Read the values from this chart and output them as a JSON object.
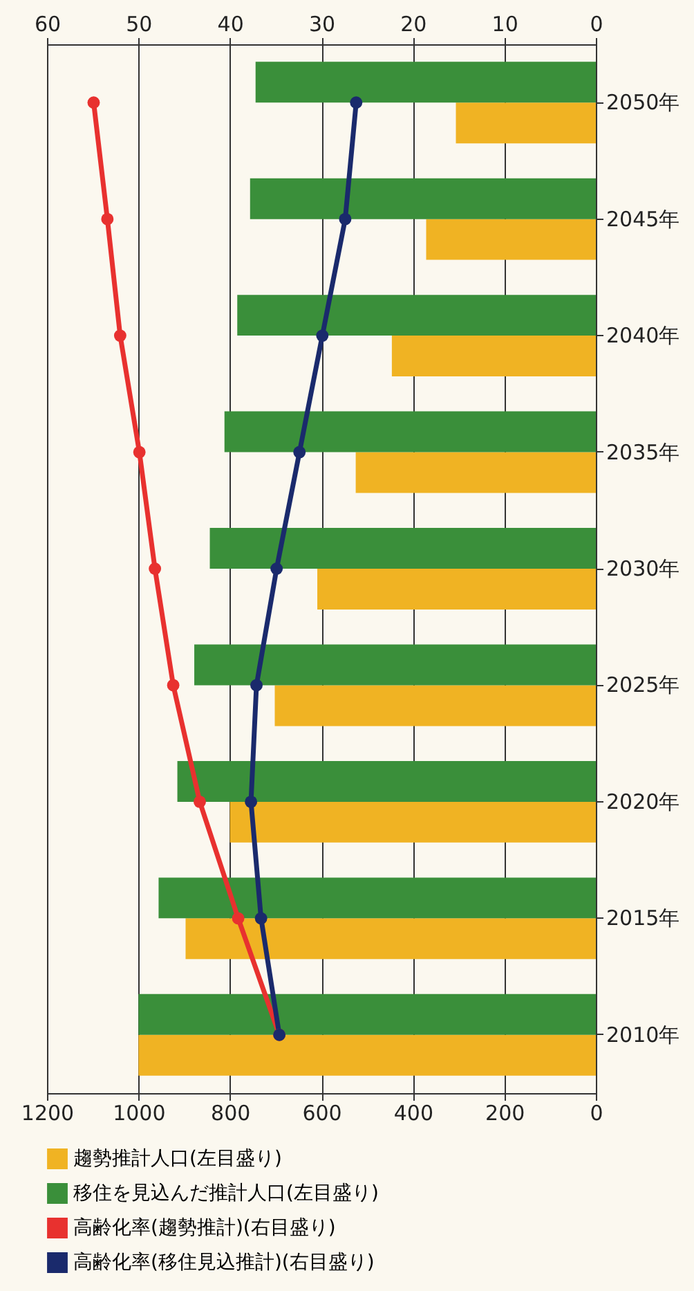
{
  "chart_data": {
    "type": "bar",
    "orientation": "horizontal",
    "categories": [
      "2050年",
      "2045年",
      "2040年",
      "2035年",
      "2030年",
      "2025年",
      "2020年",
      "2015年",
      "2010年"
    ],
    "series": [
      {
        "name": "趨勢推計人口(左目盛り)",
        "color": "#f0b323",
        "values": [
          306,
          371,
          446,
          525,
          609,
          702,
          800,
          897,
          1000
        ]
      },
      {
        "name": "移住を見込んだ推計人口(左目盛り)",
        "color": "#3a8f3a",
        "values": [
          744,
          756,
          784,
          812,
          844,
          878,
          915,
          956,
          1000
        ]
      },
      {
        "name": "高齢化率(趨勢推計)(右目盛り)",
        "color": "#e8312f",
        "type": "line",
        "axis": "x2",
        "values": [
          54.9,
          53.4,
          52.0,
          49.9,
          48.2,
          46.2,
          43.3,
          39.1,
          34.6
        ]
      },
      {
        "name": "高齢化率(移住見込推計)(右目盛り)",
        "color": "#1a2a6c",
        "type": "line",
        "axis": "x2",
        "values": [
          26.2,
          27.4,
          29.9,
          32.4,
          34.9,
          37.1,
          37.7,
          36.6,
          34.6
        ]
      }
    ],
    "xlim": [
      1200,
      0
    ],
    "xticks": [
      1200,
      1000,
      800,
      600,
      400,
      200,
      0
    ],
    "x2lim": [
      60,
      0
    ],
    "x2ticks": [
      60,
      50,
      40,
      30,
      20,
      10,
      0
    ],
    "grid": "x",
    "legend": "bottom",
    "marker": "circle",
    "line_style": "solid"
  }
}
